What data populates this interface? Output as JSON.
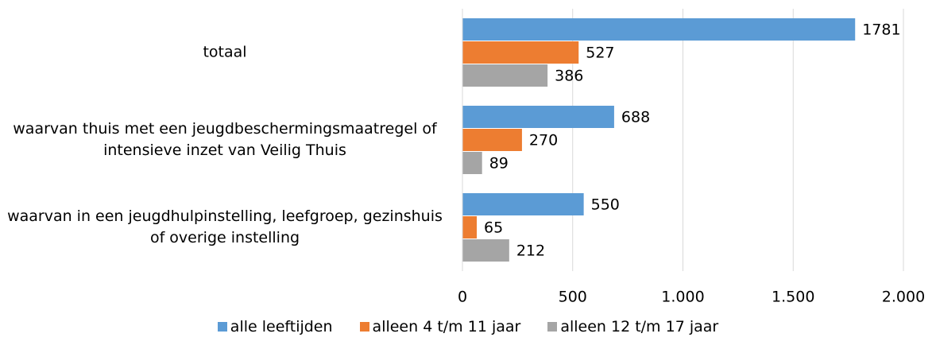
{
  "chart_data": {
    "type": "bar",
    "orientation": "horizontal",
    "categories": [
      "totaal",
      "waarvan thuis met een jeugdbeschermingsmaatregel of intensieve inzet van Veilig Thuis",
      "waarvan in een jeugdhulpinstelling, leefgroep, gezinshuis of overige instelling"
    ],
    "series": [
      {
        "name": "alle leeftijden",
        "color": "#5b9bd5",
        "values": [
          1781,
          688,
          550
        ]
      },
      {
        "name": "alleen 4 t/m 11 jaar",
        "color": "#ed7d31",
        "values": [
          527,
          270,
          65
        ]
      },
      {
        "name": "alleen 12 t/m 17 jaar",
        "color": "#a5a5a5",
        "values": [
          386,
          89,
          212
        ]
      }
    ],
    "xlim": [
      0,
      2000
    ],
    "xticks": [
      0,
      500,
      {
        "value": 1000,
        "label": "1.000"
      },
      {
        "value": 1500,
        "label": "1.500"
      },
      {
        "value": 2000,
        "label": "2.000"
      }
    ],
    "grid": true,
    "legend": "bottom"
  }
}
